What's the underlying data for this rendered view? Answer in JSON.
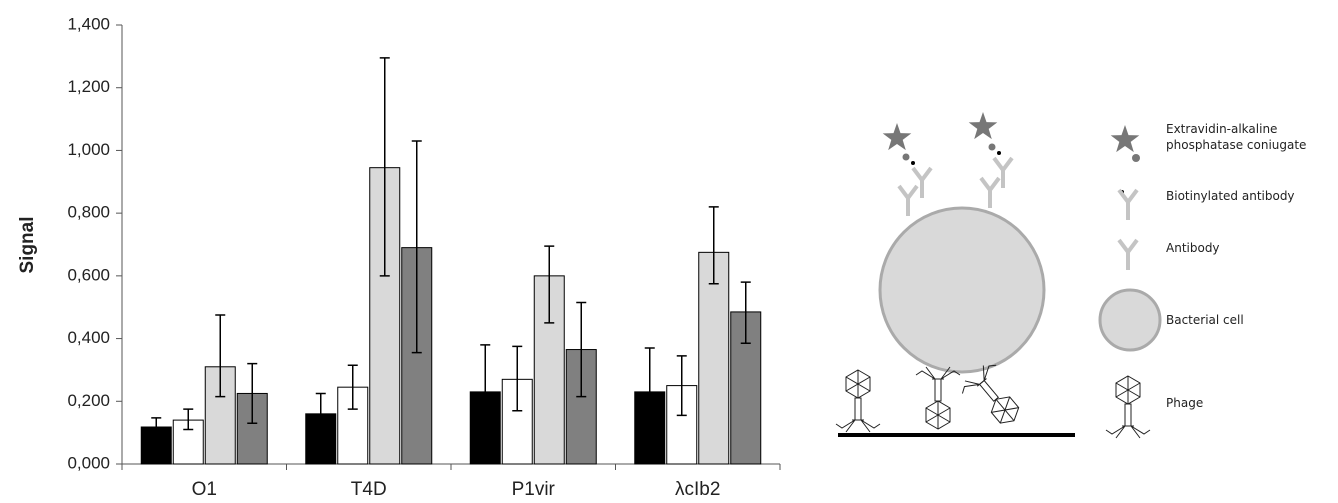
{
  "chart_data": {
    "type": "bar",
    "y_label": "Signal",
    "categories": [
      "O1",
      "T4D",
      "P1vir",
      "λcIb2"
    ],
    "series": [
      {
        "color": "#000000",
        "values": [
          0.118,
          0.16,
          0.23,
          0.23
        ],
        "lower": [
          0.096,
          0.1,
          0.08,
          0.09
        ],
        "upper": [
          0.147,
          0.225,
          0.38,
          0.37
        ]
      },
      {
        "color": "#ffffff",
        "values": [
          0.14,
          0.245,
          0.27,
          0.25
        ],
        "lower": [
          0.11,
          0.175,
          0.17,
          0.155
        ],
        "upper": [
          0.175,
          0.315,
          0.375,
          0.345
        ]
      },
      {
        "color": "#d9d9d9",
        "values": [
          0.31,
          0.945,
          0.6,
          0.675
        ],
        "lower": [
          0.215,
          0.6,
          0.45,
          0.575
        ],
        "upper": [
          0.475,
          1.295,
          0.695,
          0.82
        ]
      },
      {
        "color": "#808080",
        "values": [
          0.225,
          0.69,
          0.365,
          0.485
        ],
        "lower": [
          0.13,
          0.355,
          0.215,
          0.385
        ],
        "upper": [
          0.32,
          1.03,
          0.515,
          0.58
        ]
      }
    ],
    "ylim": [
      0,
      1.4
    ],
    "yticks": [
      {
        "value": 0,
        "label": "0,000"
      },
      {
        "value": 0.2,
        "label": "0,200"
      },
      {
        "value": 0.4,
        "label": "0,400"
      },
      {
        "value": 0.6,
        "label": "0,600"
      },
      {
        "value": 0.8,
        "label": "0,800"
      },
      {
        "value": 1.0,
        "label": "1,000"
      },
      {
        "value": 1.2,
        "label": "1,200"
      },
      {
        "value": 1.4,
        "label": "1,400"
      }
    ]
  },
  "diagram": {
    "legend": [
      "Extravidin-alkaline phosphatase coniugate",
      "Biotinylated antibody",
      "Antibody",
      "Bacterial cell",
      "Phage"
    ]
  }
}
